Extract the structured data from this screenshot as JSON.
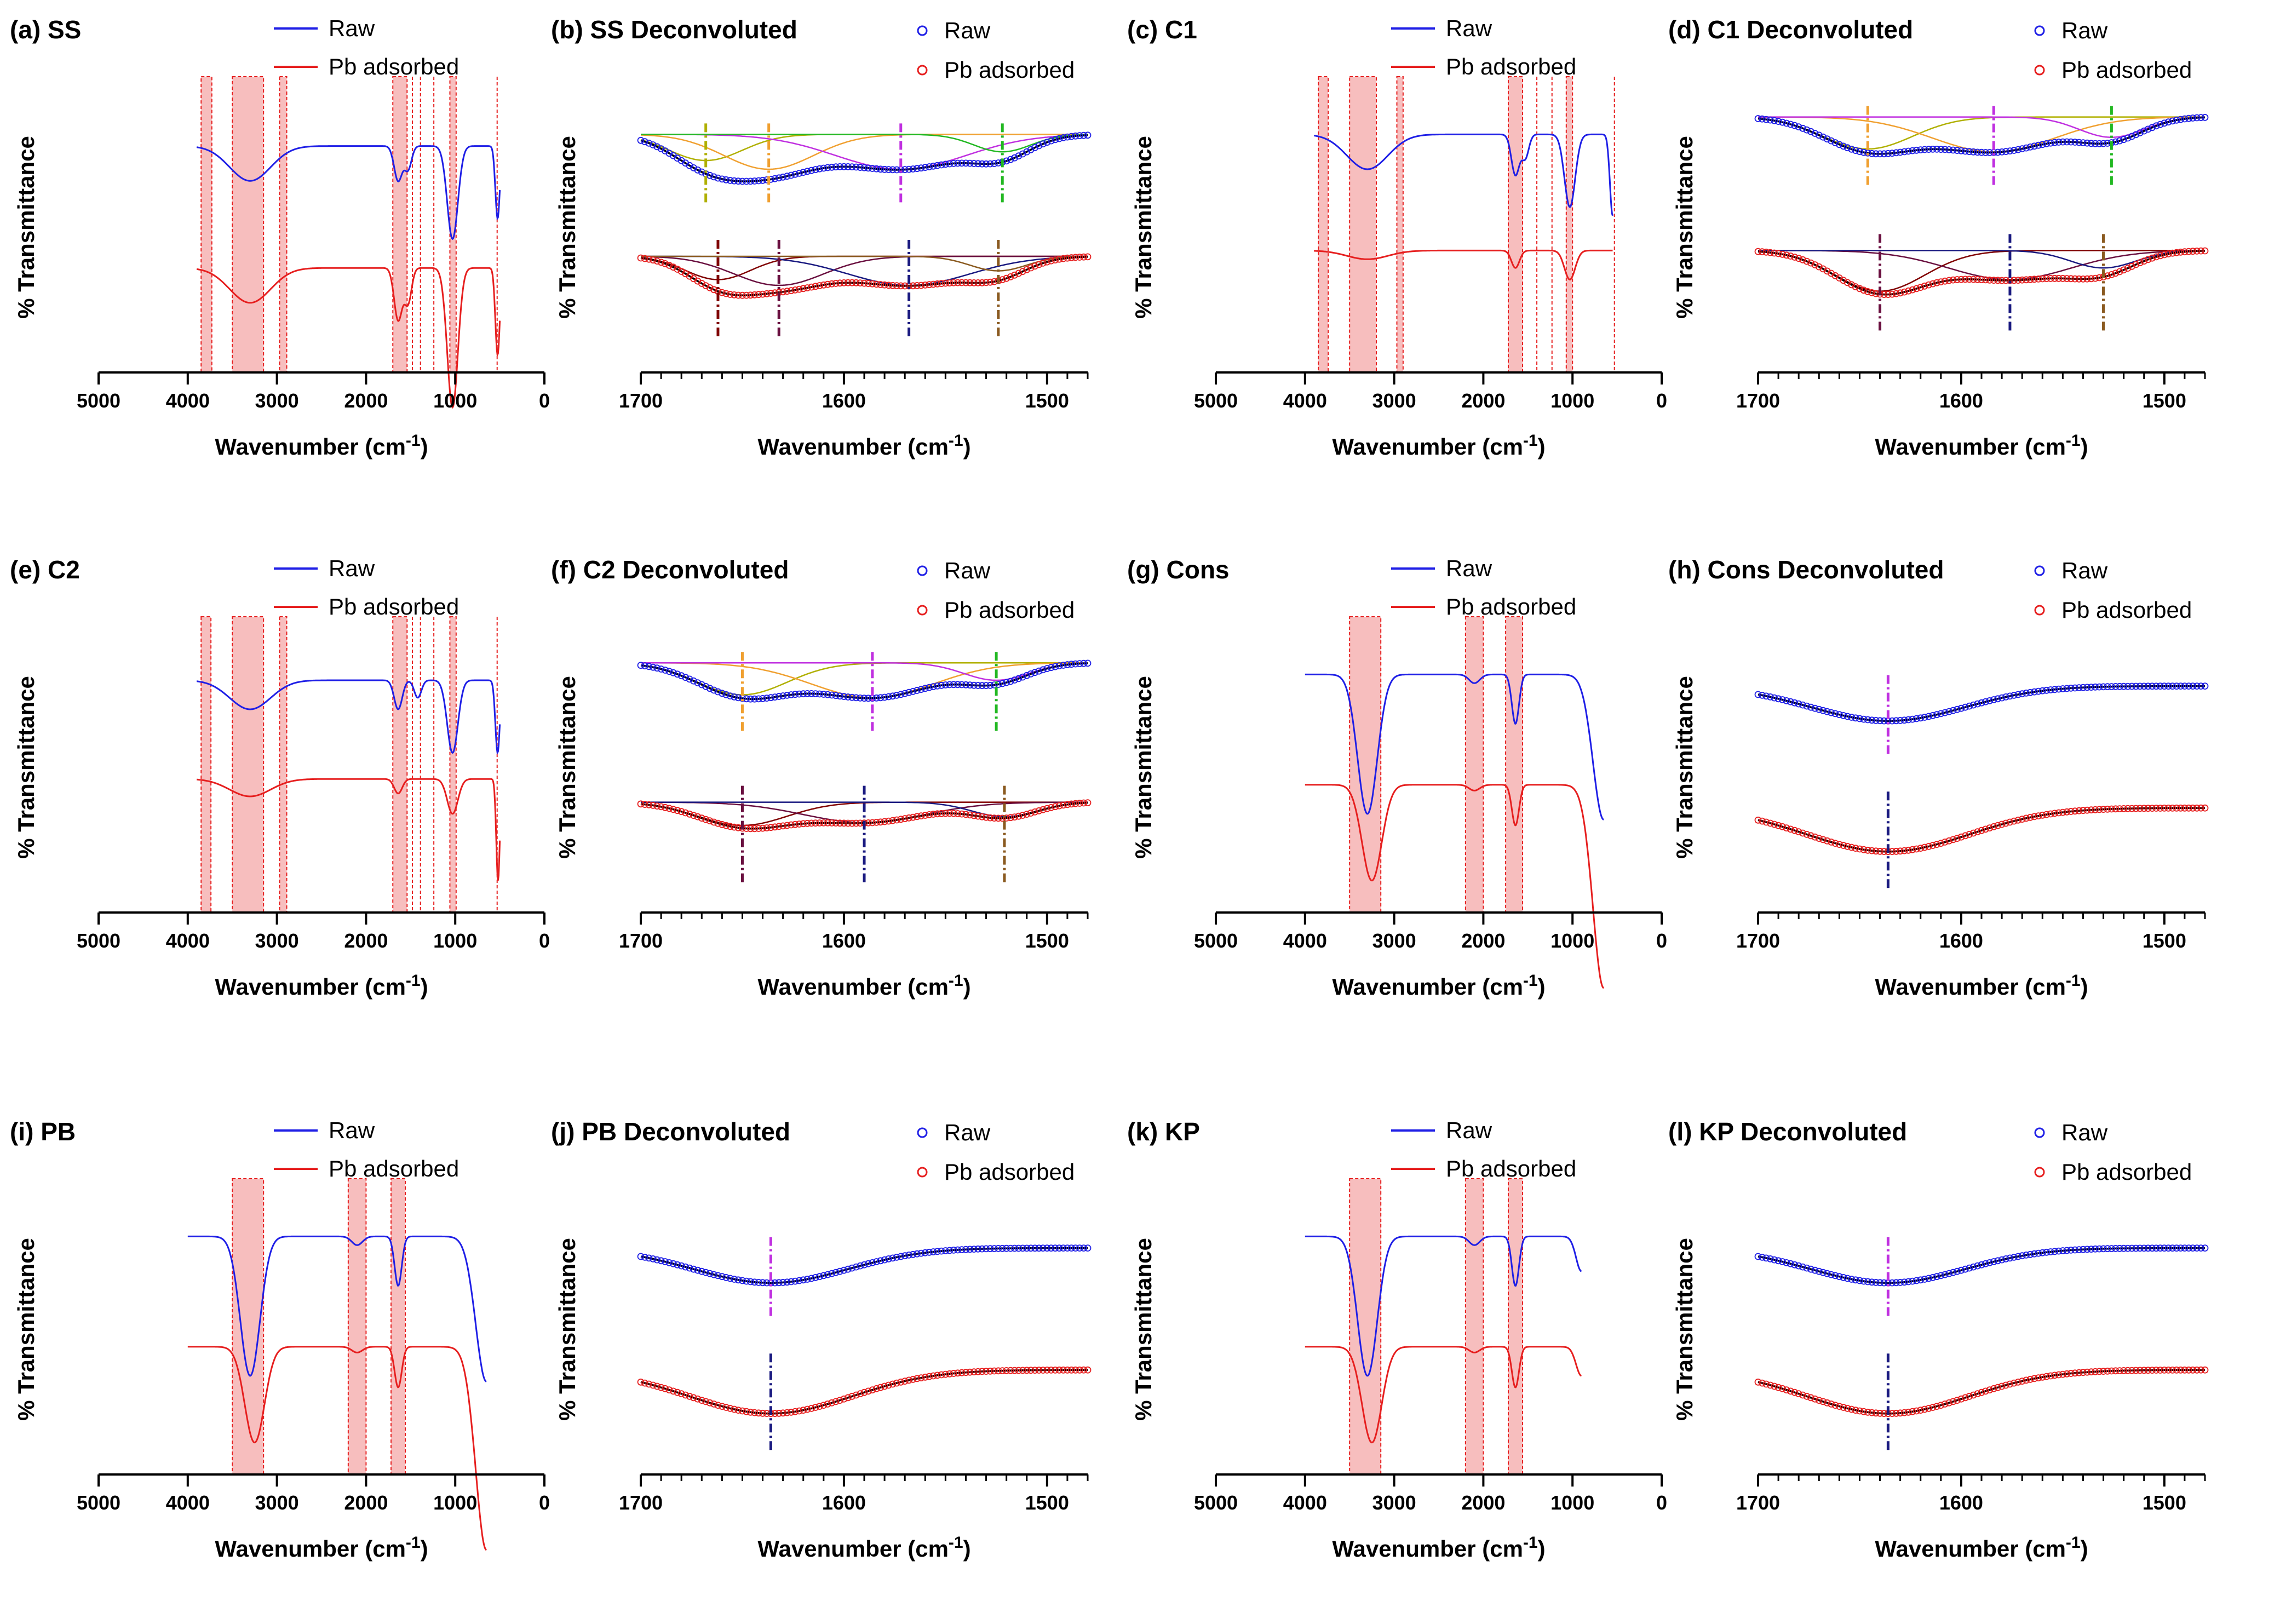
{
  "figure": {
    "label": "FTIR spectra (raw vs Pb adsorbed) and deconvoluted amide I region for six samples"
  },
  "colors": {
    "raw": "#1f1fe6",
    "pb": "#e61f1f",
    "band_fill": "#f6b3b3",
    "band_edge": "#e61f1f",
    "axis": "#000000",
    "fit_orange": "#f0a030",
    "fit_green": "#22b822",
    "fit_magenta": "#c030e0",
    "fit_brown": "#8a5a20",
    "fit_navy": "#1a1a80",
    "fit_maroon": "#6a1040",
    "fit_darkred": "#800000",
    "fit_black": "#000000",
    "fit_olive": "#b0b000"
  },
  "chart_data": [
    {
      "id": "a",
      "type": "line",
      "mode": "full",
      "title": "(a) SS",
      "xlabel": "Wavenumber (cm",
      "xlabel_sup": "-1",
      "xlabel_end": ")",
      "ylabel": "% Transmittance",
      "xlim": [
        5000,
        0
      ],
      "xticks": [
        5000,
        4000,
        3000,
        2000,
        1000,
        0
      ],
      "legend": [
        "Raw",
        "Pb adsorbed"
      ],
      "bands": [
        [
          3850,
          3730
        ],
        [
          3500,
          3150
        ],
        [
          2970,
          2890
        ],
        [
          1700,
          1540
        ],
        [
          1060,
          990
        ]
      ],
      "lines": [
        1480,
        1390,
        1240,
        530
      ],
      "xrange": [
        3900,
        500
      ],
      "raw": {
        "base": 0.78,
        "peaks": [
          [
            3300,
            0.12,
            230
          ],
          [
            1640,
            0.12,
            45
          ],
          [
            1530,
            0.08,
            40
          ],
          [
            1030,
            0.32,
            60
          ],
          [
            525,
            0.25,
            25
          ]
        ]
      },
      "pb": {
        "base": 0.36,
        "peaks": [
          [
            3300,
            0.12,
            230
          ],
          [
            1640,
            0.18,
            45
          ],
          [
            1530,
            0.12,
            40
          ],
          [
            1030,
            0.48,
            60
          ],
          [
            525,
            0.3,
            25
          ]
        ]
      }
    },
    {
      "id": "b",
      "type": "line",
      "mode": "deconv",
      "title": "(b) SS Deconvoluted",
      "xlabel": "Wavenumber (cm",
      "xlabel_sup": "-1",
      "xlabel_end": ")",
      "ylabel": "% Transmittance",
      "xlim": [
        1700,
        1480
      ],
      "xticks": [
        1700,
        1600,
        1500
      ],
      "legend": [
        "Raw",
        "Pb adsorbed"
      ],
      "raw": {
        "base": 0.82,
        "comps": [
          [
            1668,
            0.09,
            18
          ],
          [
            1637,
            0.12,
            22
          ],
          [
            1572,
            0.12,
            32
          ],
          [
            1522,
            0.06,
            14
          ]
        ]
      },
      "pb": {
        "base": 0.4,
        "comps": [
          [
            1662,
            0.08,
            16
          ],
          [
            1632,
            0.1,
            22
          ],
          [
            1568,
            0.1,
            30
          ],
          [
            1524,
            0.05,
            14
          ]
        ]
      },
      "raw_markers": [
        1668,
        1637,
        1572,
        1522
      ],
      "pb_markers": [
        1662,
        1632,
        1568,
        1524
      ]
    },
    {
      "id": "c",
      "type": "line",
      "mode": "full",
      "title": "(c) C1",
      "xlabel": "Wavenumber (cm",
      "xlabel_sup": "-1",
      "xlabel_end": ")",
      "ylabel": "% Transmittance",
      "xlim": [
        5000,
        0
      ],
      "xticks": [
        5000,
        4000,
        3000,
        2000,
        1000,
        0
      ],
      "legend": [
        "Raw",
        "Pb adsorbed"
      ],
      "bands": [
        [
          3850,
          3740
        ],
        [
          3500,
          3200
        ],
        [
          2970,
          2900
        ],
        [
          1720,
          1560
        ],
        [
          1070,
          1000
        ]
      ],
      "lines": [
        1400,
        1230,
        530
      ],
      "xrange": [
        3900,
        550
      ],
      "raw": {
        "base": 0.82,
        "peaks": [
          [
            3300,
            0.12,
            230
          ],
          [
            1640,
            0.14,
            45
          ],
          [
            1530,
            0.08,
            40
          ],
          [
            1030,
            0.25,
            60
          ],
          [
            550,
            0.28,
            30
          ]
        ]
      },
      "pb": {
        "base": 0.42,
        "peaks": [
          [
            3300,
            0.03,
            230
          ],
          [
            1640,
            0.06,
            45
          ],
          [
            1030,
            0.1,
            60
          ]
        ]
      }
    },
    {
      "id": "d",
      "type": "line",
      "mode": "deconv",
      "title": "(d) C1 Deconvoluted",
      "xlabel": "Wavenumber (cm",
      "xlabel_sup": "-1",
      "xlabel_end": ")",
      "ylabel": "% Transmittance",
      "xlim": [
        1700,
        1480
      ],
      "xticks": [
        1700,
        1600,
        1500
      ],
      "legend": [
        "Raw",
        "Pb adsorbed"
      ],
      "raw": {
        "base": 0.88,
        "comps": [
          [
            1646,
            0.11,
            22
          ],
          [
            1584,
            0.12,
            30
          ],
          [
            1526,
            0.07,
            16
          ]
        ]
      },
      "pb": {
        "base": 0.42,
        "comps": [
          [
            1640,
            0.14,
            22
          ],
          [
            1576,
            0.1,
            30
          ],
          [
            1530,
            0.06,
            16
          ]
        ]
      },
      "raw_markers": [
        1646,
        1584,
        1526
      ],
      "pb_markers": [
        1640,
        1576,
        1530
      ]
    },
    {
      "id": "e",
      "type": "line",
      "mode": "full",
      "title": "(e) C2",
      "xlabel": "Wavenumber (cm",
      "xlabel_sup": "-1",
      "xlabel_end": ")",
      "ylabel": "% Transmittance",
      "xlim": [
        5000,
        0
      ],
      "xticks": [
        5000,
        4000,
        3000,
        2000,
        1000,
        0
      ],
      "legend": [
        "Raw",
        "Pb adsorbed"
      ],
      "bands": [
        [
          3850,
          3740
        ],
        [
          3500,
          3150
        ],
        [
          2970,
          2890
        ],
        [
          1700,
          1540
        ],
        [
          1060,
          990
        ]
      ],
      "lines": [
        1480,
        1390,
        1240,
        530
      ],
      "xrange": [
        3900,
        500
      ],
      "raw": {
        "base": 0.8,
        "peaks": [
          [
            3300,
            0.1,
            230
          ],
          [
            1640,
            0.1,
            45
          ],
          [
            1420,
            0.06,
            40
          ],
          [
            1030,
            0.25,
            60
          ],
          [
            525,
            0.25,
            25
          ]
        ]
      },
      "pb": {
        "base": 0.46,
        "peaks": [
          [
            3300,
            0.06,
            230
          ],
          [
            1640,
            0.05,
            45
          ],
          [
            1030,
            0.12,
            60
          ],
          [
            520,
            0.35,
            20
          ]
        ]
      }
    },
    {
      "id": "f",
      "type": "line",
      "mode": "deconv",
      "title": "(f) C2 Deconvoluted",
      "xlabel": "Wavenumber (cm",
      "xlabel_sup": "-1",
      "xlabel_end": ")",
      "ylabel": "% Transmittance",
      "xlim": [
        1700,
        1480
      ],
      "xticks": [
        1700,
        1600,
        1500
      ],
      "legend": [
        "Raw",
        "Pb adsorbed"
      ],
      "raw": {
        "base": 0.86,
        "comps": [
          [
            1650,
            0.11,
            22
          ],
          [
            1586,
            0.12,
            30
          ],
          [
            1525,
            0.06,
            16
          ]
        ]
      },
      "pb": {
        "base": 0.38,
        "comps": [
          [
            1650,
            0.08,
            22
          ],
          [
            1590,
            0.07,
            30
          ],
          [
            1521,
            0.05,
            16
          ]
        ]
      },
      "raw_markers": [
        1650,
        1586,
        1525
      ],
      "pb_markers": [
        1650,
        1590,
        1521
      ]
    },
    {
      "id": "g",
      "type": "line",
      "mode": "full",
      "title": "(g) Cons",
      "xlabel": "Wavenumber (cm",
      "xlabel_sup": "-1",
      "xlabel_end": ")",
      "ylabel": "% Transmittance",
      "xlim": [
        5000,
        0
      ],
      "xticks": [
        5000,
        4000,
        3000,
        2000,
        1000,
        0
      ],
      "legend": [
        "Raw",
        "Pb adsorbed"
      ],
      "bands": [
        [
          3500,
          3150
        ],
        [
          2200,
          2000
        ],
        [
          1750,
          1560
        ]
      ],
      "lines": [],
      "xrange": [
        4000,
        650
      ],
      "raw": {
        "base": 0.82,
        "peaks": [
          [
            3300,
            0.48,
            110
          ],
          [
            2100,
            0.03,
            60
          ],
          [
            1640,
            0.17,
            40
          ],
          [
            650,
            0.5,
            120
          ]
        ]
      },
      "pb": {
        "base": 0.44,
        "peaks": [
          [
            3250,
            0.33,
            110
          ],
          [
            2100,
            0.02,
            60
          ],
          [
            1640,
            0.14,
            40
          ],
          [
            650,
            0.7,
            120
          ]
        ]
      }
    },
    {
      "id": "h",
      "type": "line",
      "mode": "deconv",
      "title": "(h) Cons Deconvoluted",
      "xlabel": "Wavenumber (cm",
      "xlabel_sup": "-1",
      "xlabel_end": ")",
      "ylabel": "% Transmittance",
      "xlim": [
        1700,
        1480
      ],
      "xticks": [
        1700,
        1600,
        1500
      ],
      "legend": [
        "Raw",
        "Pb adsorbed"
      ],
      "raw": {
        "base": 0.78,
        "comps": [
          [
            1636,
            0.12,
            38
          ]
        ]
      },
      "pb": {
        "base": 0.36,
        "comps": [
          [
            1636,
            0.15,
            40
          ]
        ]
      },
      "raw_markers": [
        1636
      ],
      "pb_markers": [
        1636
      ]
    },
    {
      "id": "i",
      "type": "line",
      "mode": "full",
      "title": "(i) PB",
      "xlabel": "Wavenumber (cm",
      "xlabel_sup": "-1",
      "xlabel_end": ")",
      "ylabel": "% Transmittance",
      "xlim": [
        5000,
        0
      ],
      "xticks": [
        5000,
        4000,
        3000,
        2000,
        1000,
        0
      ],
      "legend": [
        "Raw",
        "Pb adsorbed"
      ],
      "bands": [
        [
          3500,
          3150
        ],
        [
          2200,
          2000
        ],
        [
          1720,
          1560
        ]
      ],
      "lines": [],
      "xrange": [
        4000,
        650
      ],
      "raw": {
        "base": 0.82,
        "peaks": [
          [
            3300,
            0.48,
            110
          ],
          [
            2100,
            0.03,
            60
          ],
          [
            1640,
            0.17,
            40
          ],
          [
            650,
            0.5,
            120
          ]
        ]
      },
      "pb": {
        "base": 0.44,
        "peaks": [
          [
            3250,
            0.33,
            110
          ],
          [
            2100,
            0.02,
            60
          ],
          [
            1640,
            0.14,
            40
          ],
          [
            650,
            0.7,
            120
          ]
        ]
      }
    },
    {
      "id": "j",
      "type": "line",
      "mode": "deconv",
      "title": "(j) PB Deconvoluted",
      "xlabel": "Wavenumber (cm",
      "xlabel_sup": "-1",
      "xlabel_end": ")",
      "ylabel": "% Transmittance",
      "xlim": [
        1700,
        1480
      ],
      "xticks": [
        1700,
        1600,
        1500
      ],
      "legend": [
        "Raw",
        "Pb adsorbed"
      ],
      "raw": {
        "base": 0.78,
        "comps": [
          [
            1636,
            0.12,
            38
          ]
        ]
      },
      "pb": {
        "base": 0.36,
        "comps": [
          [
            1636,
            0.15,
            40
          ]
        ]
      },
      "raw_markers": [
        1636
      ],
      "pb_markers": [
        1636
      ]
    },
    {
      "id": "k",
      "type": "line",
      "mode": "full",
      "title": "(k) KP",
      "xlabel": "Wavenumber (cm",
      "xlabel_sup": "-1",
      "xlabel_end": ")",
      "ylabel": "% Transmittance",
      "xlim": [
        5000,
        0
      ],
      "xticks": [
        5000,
        4000,
        3000,
        2000,
        1000,
        0
      ],
      "legend": [
        "Raw",
        "Pb adsorbed"
      ],
      "bands": [
        [
          3500,
          3150
        ],
        [
          2200,
          2000
        ],
        [
          1720,
          1560
        ]
      ],
      "lines": [],
      "xrange": [
        4000,
        900
      ],
      "raw": {
        "base": 0.82,
        "peaks": [
          [
            3300,
            0.48,
            110
          ],
          [
            2100,
            0.03,
            60
          ],
          [
            1640,
            0.17,
            40
          ],
          [
            900,
            0.12,
            60
          ]
        ]
      },
      "pb": {
        "base": 0.44,
        "peaks": [
          [
            3250,
            0.33,
            110
          ],
          [
            2100,
            0.02,
            60
          ],
          [
            1640,
            0.14,
            40
          ],
          [
            900,
            0.1,
            60
          ]
        ]
      }
    },
    {
      "id": "l",
      "type": "line",
      "mode": "deconv",
      "title": "(l) KP Deconvoluted",
      "xlabel": "Wavenumber (cm",
      "xlabel_sup": "-1",
      "xlabel_end": ")",
      "ylabel": "% Transmittance",
      "xlim": [
        1700,
        1480
      ],
      "xticks": [
        1700,
        1600,
        1500
      ],
      "legend": [
        "Raw",
        "Pb adsorbed"
      ],
      "raw": {
        "base": 0.78,
        "comps": [
          [
            1636,
            0.12,
            38
          ]
        ]
      },
      "pb": {
        "base": 0.36,
        "comps": [
          [
            1636,
            0.15,
            40
          ]
        ]
      },
      "raw_markers": [
        1636
      ],
      "pb_markers": [
        1636
      ]
    }
  ]
}
